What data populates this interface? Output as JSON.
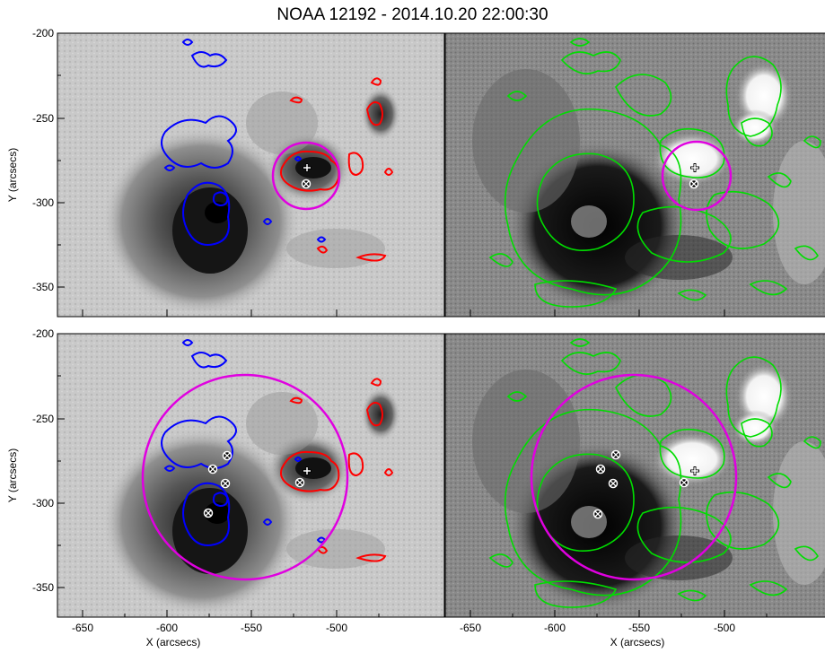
{
  "title": "NOAA 12192 - 2014.10.20  22:00:30",
  "axes": {
    "xlabel": "X (arcsecs)",
    "ylabel": "Y (arcsecs)",
    "x_ticks": [
      "-650",
      "-600",
      "-550",
      "-500"
    ],
    "y_ticks": [
      "-200",
      "-250",
      "-300",
      "-350"
    ]
  },
  "panels": [
    {
      "id": "top-left",
      "kind": "continuum",
      "contours": [
        "red",
        "blue"
      ],
      "circle": "small",
      "markers": [
        "plus",
        "otimes"
      ]
    },
    {
      "id": "top-right",
      "kind": "magnetogram",
      "contours": [
        "green"
      ],
      "circle": "small",
      "markers": [
        "plus",
        "otimes"
      ]
    },
    {
      "id": "bottom-left",
      "kind": "continuum",
      "contours": [
        "red",
        "blue"
      ],
      "circle": "large",
      "markers": [
        "plus",
        "otimes",
        "otimes",
        "otimes",
        "otimes",
        "otimes"
      ]
    },
    {
      "id": "bottom-right",
      "kind": "magnetogram",
      "contours": [
        "green"
      ],
      "circle": "large",
      "markers": [
        "plus",
        "otimes",
        "otimes",
        "otimes",
        "otimes",
        "otimes"
      ]
    }
  ],
  "colors": {
    "positive_contour": "#ff0000",
    "negative_contour": "#0000ff",
    "magnetogram_contour": "#00dd00",
    "circle": "#e000e0",
    "marker": "#ffffff"
  }
}
